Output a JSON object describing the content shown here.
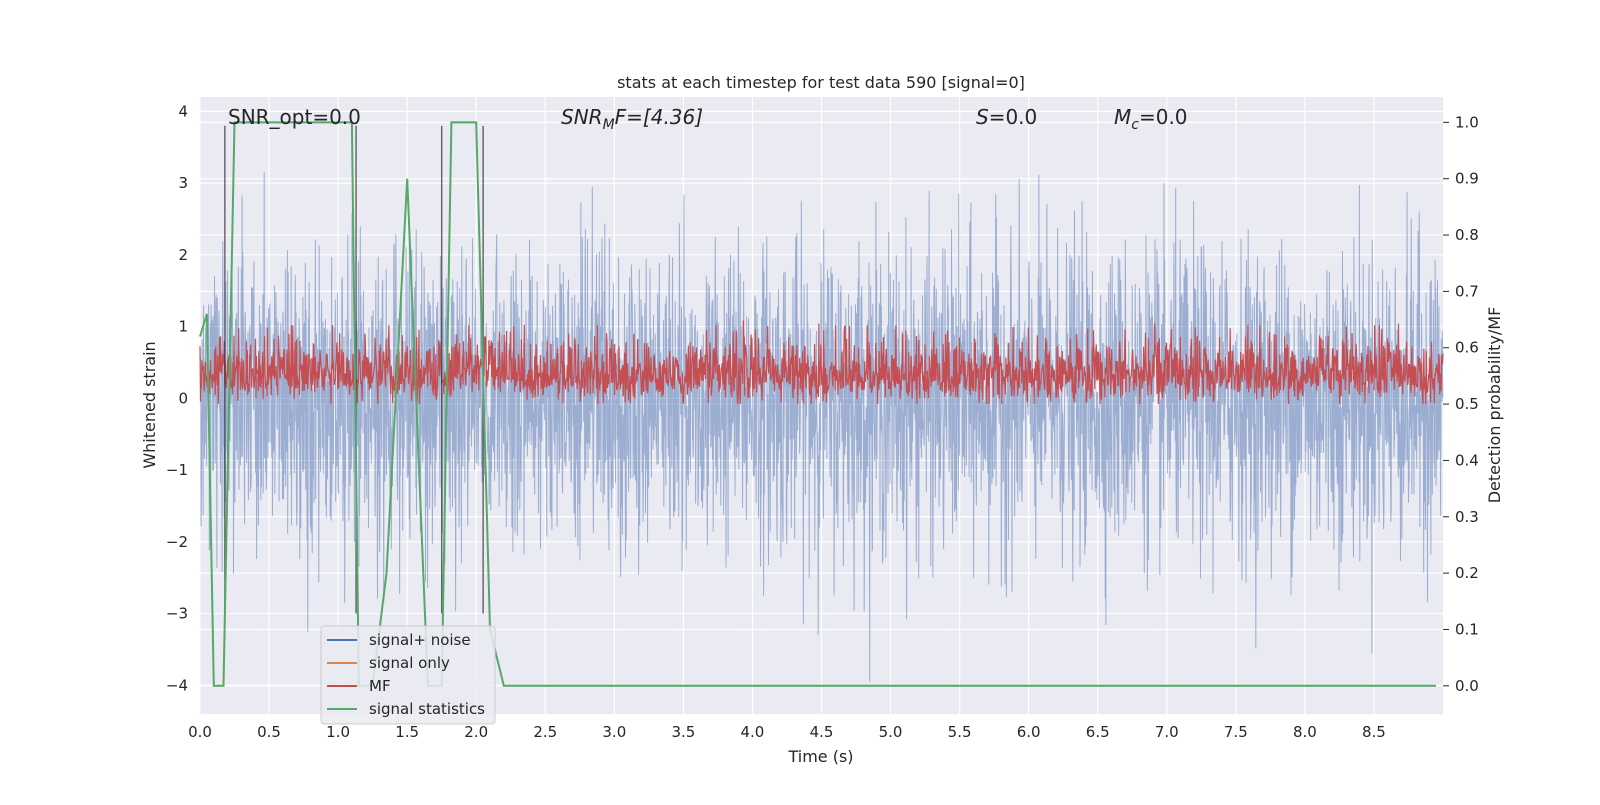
{
  "chart_data": {
    "type": "line",
    "title": "stats at each timestep for test data 590 [signal=0]",
    "xlabel": "Time (s)",
    "ylabel": "Whitened strain",
    "ylabel_right": "Detection probability/MF",
    "xlim": [
      0.0,
      9.0
    ],
    "ylim": [
      -4.4,
      4.2
    ],
    "ylim_right": [
      -0.05,
      1.045
    ],
    "x_ticks": [
      "0.0",
      "0.5",
      "1.0",
      "1.5",
      "2.0",
      "2.5",
      "3.0",
      "3.5",
      "4.0",
      "4.5",
      "5.0",
      "5.5",
      "6.0",
      "6.5",
      "7.0",
      "7.5",
      "8.0",
      "8.5"
    ],
    "y_ticks": [
      "4",
      "3",
      "2",
      "1",
      "0",
      "−1",
      "−2",
      "−3",
      "−4"
    ],
    "y_ticks_right": [
      "1.0",
      "0.9",
      "0.8",
      "0.7",
      "0.6",
      "0.5",
      "0.4",
      "0.3",
      "0.2",
      "0.1",
      "0.0"
    ],
    "grid": true,
    "legend_position": "lower-left",
    "annotations": {
      "snr_opt": "SNR_opt=0.0",
      "snr_mf_prefix": "SNR",
      "snr_mf_sub": "M",
      "snr_mf_suffix": "F=[4.36]",
      "s_italic": "S",
      "s_value": "=0.0",
      "mc_italic": "M",
      "mc_sub": "c",
      "mc_value": "=0.0"
    },
    "series": [
      {
        "name": "signal+ noise",
        "color": "#4c72b0",
        "description_values": {
          "amplitude_range": [
            -4.0,
            3.85
          ]
        }
      },
      {
        "name": "signal only",
        "color": "#dd8452",
        "values": []
      },
      {
        "name": "MF",
        "color": "#c44e52",
        "description_values": {
          "range": [
            0.0,
            0.95
          ]
        }
      },
      {
        "name": "signal statistics",
        "color": "#55a868",
        "x": [
          0.0,
          0.05,
          0.1,
          0.12,
          0.17,
          0.25,
          1.1,
          1.15,
          1.25,
          1.35,
          1.5,
          1.65,
          1.75,
          1.82,
          2.0,
          2.1,
          2.2,
          8.95
        ],
        "y": [
          0.62,
          0.66,
          0.0,
          0.0,
          0.0,
          1.0,
          1.0,
          0.0,
          0.0,
          0.2,
          0.9,
          0.0,
          0.0,
          1.0,
          1.0,
          0.1,
          0.0,
          0.0
        ]
      }
    ],
    "vertical_markers_x": [
      0.18,
      1.13,
      1.75,
      2.05
    ]
  }
}
